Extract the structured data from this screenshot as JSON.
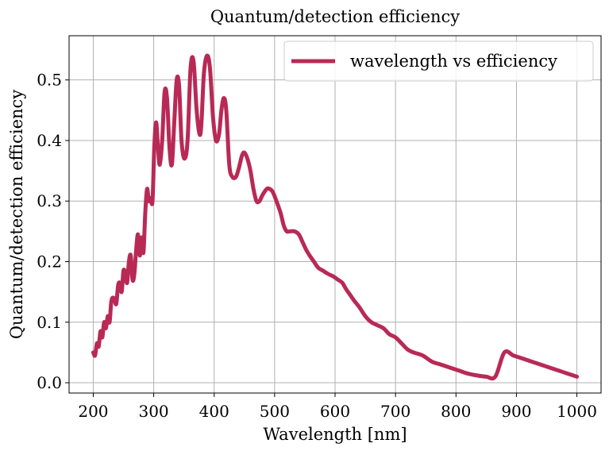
{
  "chart_data": {
    "type": "line",
    "title": "Quantum/detection efficiency",
    "xlabel": "Wavelength [nm]",
    "ylabel": "Quantum/detection efficiency",
    "xlim": [
      160,
      1040
    ],
    "ylim": [
      -0.017,
      0.573
    ],
    "xticks": [
      200,
      300,
      400,
      500,
      600,
      700,
      800,
      900,
      1000
    ],
    "xtick_labels": [
      "200",
      "300",
      "400",
      "500",
      "600",
      "700",
      "800",
      "900",
      "1000"
    ],
    "yticks": [
      0.0,
      0.1,
      0.2,
      0.3,
      0.4,
      0.5
    ],
    "ytick_labels": [
      "0.0",
      "0.1",
      "0.2",
      "0.3",
      "0.4",
      "0.5"
    ],
    "grid": true,
    "legend_position": "top-right",
    "series": [
      {
        "name": "wavelength vs efficiency",
        "color": "#b82a55",
        "x": [
          200,
          203,
          206,
          209,
          212,
          215,
          218,
          221,
          224,
          227,
          230,
          234,
          238,
          241,
          244,
          247,
          250,
          253,
          256,
          259,
          262,
          265,
          268,
          271,
          274,
          277,
          280,
          283,
          286,
          289,
          292,
          295,
          298,
          301,
          304,
          307,
          310,
          314,
          318,
          322,
          326,
          330,
          334,
          338,
          342,
          346,
          351,
          356,
          361,
          366,
          371,
          376,
          379,
          383,
          388,
          393,
          398,
          403,
          408,
          412,
          416,
          420,
          425,
          430,
          436,
          441,
          446,
          450,
          455,
          460,
          465,
          470,
          475,
          480,
          487,
          492,
          497,
          503,
          510,
          515,
          520,
          525,
          533,
          540,
          545,
          552,
          558,
          565,
          572,
          580,
          588,
          598,
          605,
          612,
          618,
          625,
          632,
          640,
          650,
          660,
          670,
          680,
          690,
          700,
          710,
          720,
          730,
          745,
          760,
          775,
          790,
          805,
          820,
          835,
          850,
          865,
          880,
          895,
          910,
          925,
          940,
          955,
          970,
          985,
          1000
        ],
        "y": [
          0.05,
          0.045,
          0.065,
          0.06,
          0.085,
          0.075,
          0.1,
          0.09,
          0.11,
          0.1,
          0.135,
          0.14,
          0.13,
          0.16,
          0.165,
          0.15,
          0.185,
          0.18,
          0.165,
          0.2,
          0.21,
          0.17,
          0.18,
          0.22,
          0.245,
          0.21,
          0.24,
          0.215,
          0.28,
          0.32,
          0.3,
          0.305,
          0.3,
          0.39,
          0.43,
          0.39,
          0.36,
          0.4,
          0.48,
          0.47,
          0.39,
          0.36,
          0.43,
          0.5,
          0.49,
          0.4,
          0.37,
          0.4,
          0.52,
          0.53,
          0.45,
          0.41,
          0.43,
          0.51,
          0.54,
          0.52,
          0.44,
          0.4,
          0.41,
          0.45,
          0.47,
          0.45,
          0.36,
          0.34,
          0.34,
          0.355,
          0.375,
          0.38,
          0.37,
          0.35,
          0.32,
          0.3,
          0.3,
          0.31,
          0.32,
          0.32,
          0.315,
          0.3,
          0.28,
          0.26,
          0.25,
          0.25,
          0.25,
          0.245,
          0.235,
          0.22,
          0.21,
          0.2,
          0.19,
          0.185,
          0.18,
          0.175,
          0.17,
          0.165,
          0.155,
          0.145,
          0.135,
          0.125,
          0.11,
          0.1,
          0.095,
          0.09,
          0.08,
          0.075,
          0.065,
          0.055,
          0.05,
          0.045,
          0.035,
          0.03,
          0.025,
          0.02,
          0.015,
          0.012,
          0.01,
          0.01,
          0.05,
          0.045,
          0.04,
          0.035,
          0.03,
          0.025,
          0.02,
          0.015,
          0.01
        ]
      }
    ]
  }
}
